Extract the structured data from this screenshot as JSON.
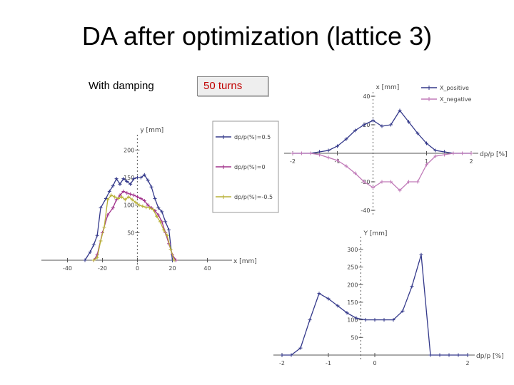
{
  "slide": {
    "title": "DA after optimization (lattice 3)",
    "damping_label": "With damping",
    "turns_label": "50 turns"
  },
  "colors": {
    "blue": "#33388a",
    "magenta": "#a0308a",
    "olive": "#b8b035",
    "pink": "#c07ab8",
    "axis": "#555555",
    "turns_text": "#c00000"
  },
  "chart_data": [
    {
      "id": "left",
      "type": "line",
      "xlabel": "x [mm]",
      "ylabel": "y [mm]",
      "xlim": [
        -50,
        50
      ],
      "ylim": [
        0,
        220
      ],
      "xticks": [
        -40,
        -20,
        0,
        20,
        40
      ],
      "xtick_labels": [
        "-40",
        "-20",
        "0",
        "20",
        "40"
      ],
      "yticks": [
        50,
        100,
        150,
        200
      ],
      "ytick_labels": [
        "50",
        "100",
        "150",
        "200"
      ],
      "legend_position": "right",
      "series": [
        {
          "name": "dp/p(%)=0.5",
          "color_key": "blue",
          "x": [
            -30,
            -27,
            -25,
            -23,
            -21,
            -18,
            -16,
            -14,
            -12,
            -10,
            -8,
            -6,
            -4,
            -2,
            0,
            2,
            4,
            6,
            8,
            10,
            12,
            14,
            16,
            18,
            20,
            22
          ],
          "y": [
            0,
            15,
            28,
            45,
            95,
            112,
            125,
            135,
            148,
            138,
            148,
            143,
            138,
            148,
            150,
            150,
            155,
            145,
            133,
            112,
            95,
            88,
            70,
            55,
            0,
            0
          ]
        },
        {
          "name": "dp/p(%)=0",
          "color_key": "magenta",
          "x": [
            -25,
            -23,
            -20,
            -17,
            -14,
            -12,
            -10,
            -8,
            -6,
            -4,
            -2,
            0,
            2,
            4,
            6,
            8,
            10,
            12,
            14,
            16,
            18,
            20,
            22
          ],
          "y": [
            0,
            10,
            50,
            82,
            95,
            110,
            118,
            125,
            122,
            120,
            118,
            115,
            112,
            108,
            100,
            95,
            90,
            82,
            70,
            50,
            30,
            10,
            0
          ]
        },
        {
          "name": "dp/p(%)=-0.5",
          "color_key": "olive",
          "x": [
            -25,
            -23,
            -21,
            -19,
            -17,
            -15,
            -13,
            -11,
            -9,
            -7,
            -5,
            -3,
            -1,
            1,
            3,
            5,
            7,
            9,
            11,
            13,
            15,
            17,
            19,
            21
          ],
          "y": [
            0,
            5,
            35,
            60,
            110,
            118,
            115,
            112,
            115,
            110,
            115,
            110,
            105,
            100,
            98,
            96,
            95,
            92,
            80,
            70,
            55,
            45,
            20,
            0
          ]
        }
      ]
    },
    {
      "id": "top-right",
      "type": "line",
      "xlabel": "dp/p [%]",
      "ylabel": "x [mm]",
      "xlim": [
        -2,
        2
      ],
      "ylim": [
        -40,
        40
      ],
      "xticks": [
        -2,
        -1,
        1,
        2
      ],
      "xtick_labels": [
        "-2",
        "-1",
        "1",
        "2"
      ],
      "yticks": [
        -40,
        -20,
        20,
        40
      ],
      "ytick_labels": [
        "-40",
        "-20",
        "20",
        "40"
      ],
      "legend_position": "top-right",
      "series": [
        {
          "name": "X_positive",
          "color_key": "blue",
          "x": [
            -2.0,
            -1.8,
            -1.6,
            -1.4,
            -1.2,
            -1.0,
            -0.8,
            -0.6,
            -0.4,
            -0.2,
            0.0,
            0.2,
            0.4,
            0.6,
            0.8,
            1.0,
            1.2,
            1.4,
            1.6,
            1.8,
            2.0
          ],
          "y": [
            0,
            0,
            0,
            1,
            2,
            5,
            10,
            16,
            20,
            23,
            19,
            20,
            30,
            22,
            14,
            7,
            2,
            1,
            0,
            0,
            0
          ]
        },
        {
          "name": "X_negative",
          "color_key": "pink",
          "x": [
            -2.0,
            -1.8,
            -1.6,
            -1.4,
            -1.2,
            -1.0,
            -0.8,
            -0.6,
            -0.4,
            -0.2,
            0.0,
            0.2,
            0.4,
            0.6,
            0.8,
            1.0,
            1.2,
            1.4,
            1.6,
            1.8,
            2.0
          ],
          "y": [
            0,
            0,
            0,
            -1,
            -3,
            -5,
            -9,
            -14,
            -20,
            -24,
            -20,
            -20,
            -26,
            -20,
            -20,
            -8,
            -2,
            -1,
            0,
            0,
            0
          ]
        }
      ]
    },
    {
      "id": "bottom-right",
      "type": "line",
      "xlabel": "dp/p [%]",
      "ylabel": "Y [mm]",
      "xlim": [
        -2,
        2
      ],
      "ylim": [
        0,
        320
      ],
      "xticks": [
        -2,
        -1,
        0,
        2
      ],
      "xtick_labels": [
        "-2",
        "-1",
        "0",
        "2"
      ],
      "yticks": [
        50,
        100,
        150,
        200,
        250,
        300
      ],
      "ytick_labels": [
        "50",
        "100",
        "150",
        "200",
        "250",
        "300"
      ],
      "legend_position": "none",
      "series": [
        {
          "name": "",
          "color_key": "blue",
          "x": [
            -2.0,
            -1.8,
            -1.6,
            -1.4,
            -1.2,
            -1.0,
            -0.8,
            -0.6,
            -0.4,
            -0.2,
            0.0,
            0.2,
            0.4,
            0.6,
            0.8,
            1.0,
            1.2,
            1.4,
            1.6,
            1.8,
            2.0
          ],
          "y": [
            0,
            0,
            20,
            100,
            175,
            160,
            140,
            120,
            105,
            100,
            100,
            100,
            100,
            125,
            195,
            285,
            0,
            0,
            0,
            0,
            0
          ]
        }
      ]
    }
  ]
}
